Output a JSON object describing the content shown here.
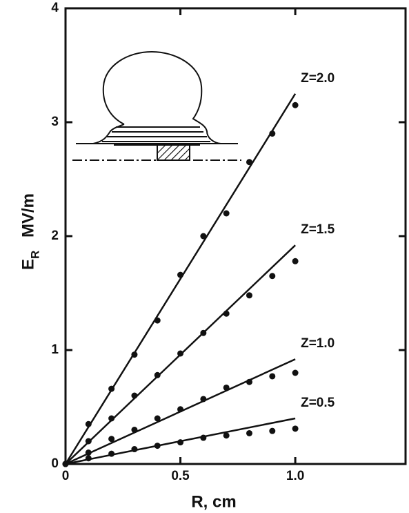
{
  "chart_data": {
    "type": "scatter",
    "xlabel": "R, cm",
    "ylabel": "E",
    "ylabel_sub": "R",
    "ylabel_unit": "MV/m",
    "x": [
      0,
      0.1,
      0.2,
      0.3,
      0.4,
      0.5,
      0.6,
      0.7,
      0.8,
      0.9,
      1.0
    ],
    "series": [
      {
        "name": "Z=2.0",
        "color": "#111111",
        "values": [
          0,
          0.35,
          0.66,
          0.96,
          1.26,
          1.66,
          2.0,
          2.2,
          2.65,
          2.9,
          3.15
        ],
        "fit": {
          "x": [
            0,
            1.0
          ],
          "values": [
            0,
            3.25
          ]
        }
      },
      {
        "name": "Z=1.5",
        "color": "#111111",
        "values": [
          0,
          0.2,
          0.4,
          0.6,
          0.78,
          0.97,
          1.15,
          1.32,
          1.48,
          1.65,
          1.78
        ],
        "fit": {
          "x": [
            0,
            1.0
          ],
          "values": [
            0,
            1.92
          ]
        }
      },
      {
        "name": "Z=1.0",
        "color": "#111111",
        "values": [
          0,
          0.1,
          0.22,
          0.3,
          0.4,
          0.48,
          0.57,
          0.67,
          0.72,
          0.77,
          0.8
        ],
        "fit": {
          "x": [
            0,
            1.0
          ],
          "values": [
            0,
            0.92
          ]
        }
      },
      {
        "name": "Z=0.5",
        "color": "#111111",
        "values": [
          0,
          0.05,
          0.09,
          0.13,
          0.16,
          0.19,
          0.23,
          0.25,
          0.27,
          0.29,
          0.31
        ],
        "fit": {
          "x": [
            0,
            1.0
          ],
          "values": [
            0,
            0.4
          ]
        }
      }
    ],
    "xlim": [
      0,
      1.48
    ],
    "ylim": [
      0,
      4
    ],
    "xticks": [
      0,
      0.5,
      {
        "value": 1,
        "label": "1.0"
      }
    ],
    "yticks": [
      0,
      1,
      2,
      3,
      4
    ]
  }
}
